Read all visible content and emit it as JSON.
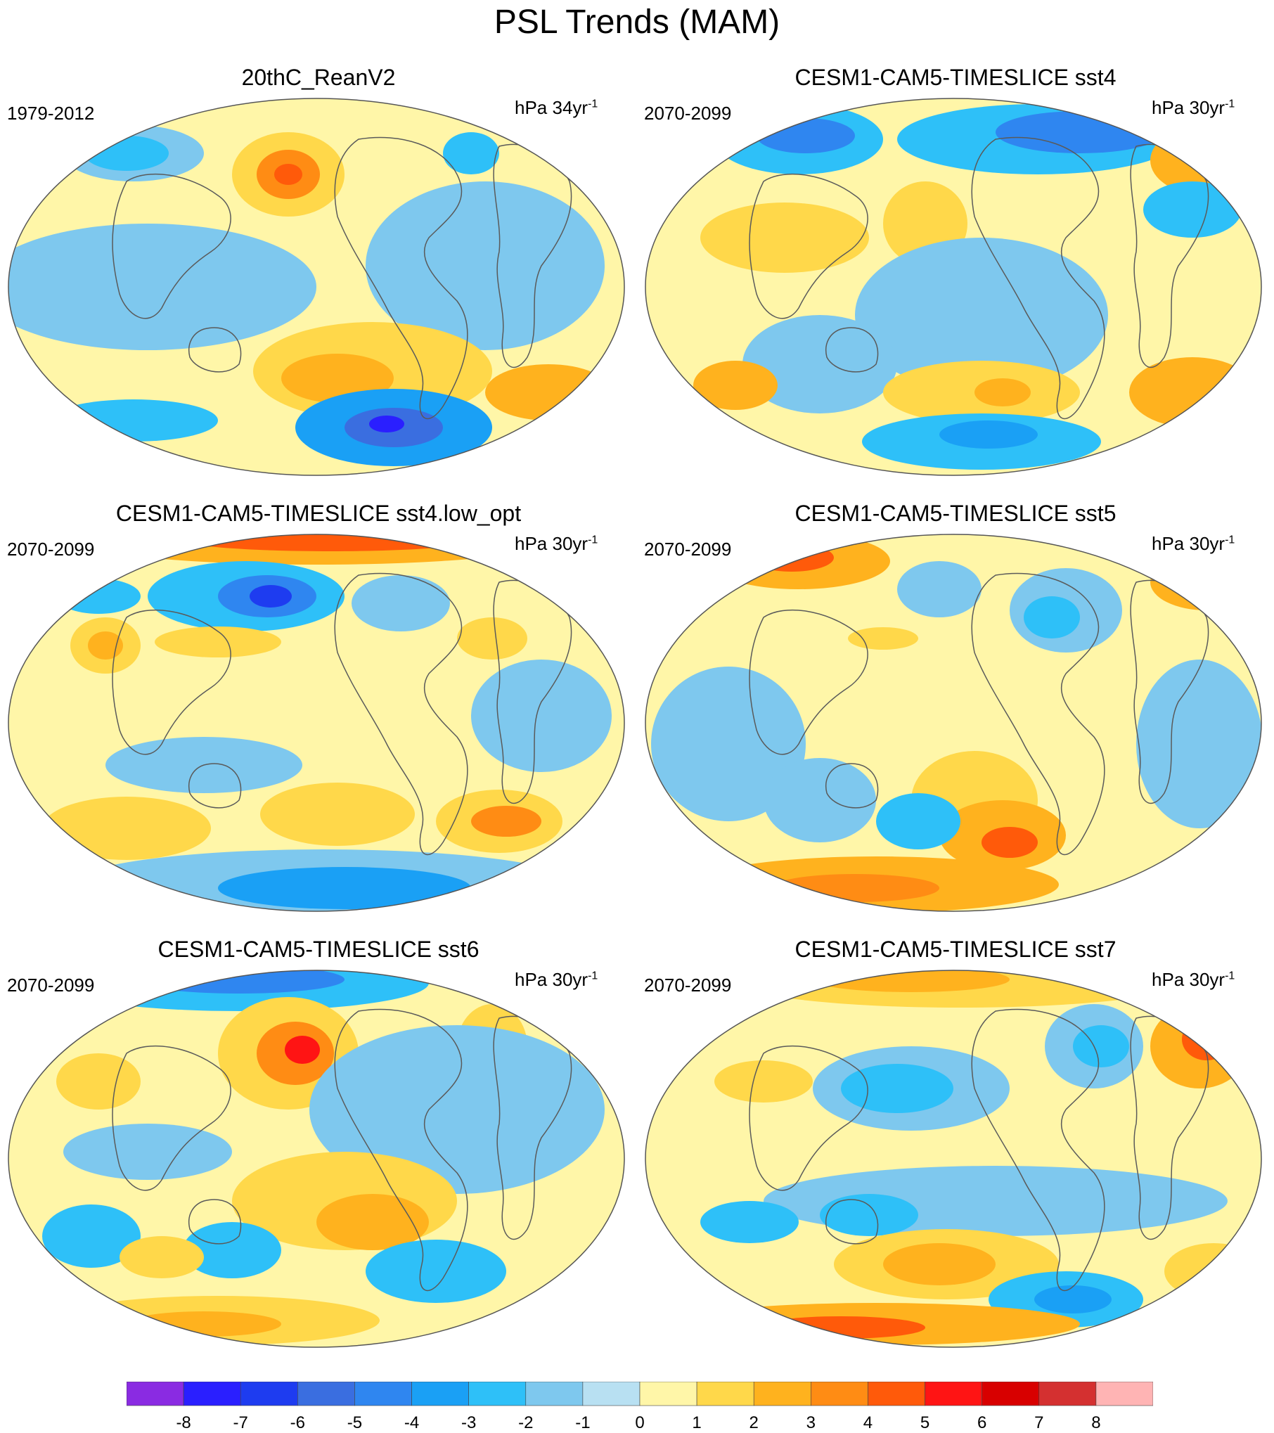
{
  "figure": {
    "title": "PSL Trends (MAM)"
  },
  "panels": [
    {
      "title": "20thC_ReanV2",
      "period": "1979-2012",
      "units_base": "hPa 34yr",
      "units_exp": "-1",
      "dominant": "mixed"
    },
    {
      "title": "CESM1-CAM5-TIMESLICE sst4",
      "period": "2070-2099",
      "units_base": "hPa 30yr",
      "units_exp": "-1",
      "dominant": "mixed"
    },
    {
      "title": "CESM1-CAM5-TIMESLICE sst4.low_opt",
      "period": "2070-2099",
      "units_base": "hPa 30yr",
      "units_exp": "-1",
      "dominant": "mixed"
    },
    {
      "title": "CESM1-CAM5-TIMESLICE sst5",
      "period": "2070-2099",
      "units_base": "hPa 30yr",
      "units_exp": "-1",
      "dominant": "mixed"
    },
    {
      "title": "CESM1-CAM5-TIMESLICE sst6",
      "period": "2070-2099",
      "units_base": "hPa 30yr",
      "units_exp": "-1",
      "dominant": "mixed"
    },
    {
      "title": "CESM1-CAM5-TIMESLICE sst7",
      "period": "2070-2099",
      "units_base": "hPa 30yr",
      "units_exp": "-1",
      "dominant": "mixed"
    }
  ],
  "colorbar": {
    "labels": [
      "-8",
      "-7",
      "-6",
      "-5",
      "-4",
      "-3",
      "-2",
      "-1",
      "0",
      "1",
      "2",
      "3",
      "4",
      "5",
      "6",
      "7",
      "8"
    ],
    "colors": [
      "#8a2be2",
      "#2a1fff",
      "#1e3cf0",
      "#3a6ee0",
      "#2f86f0",
      "#1aa0f5",
      "#2ec0f8",
      "#7ec8ee",
      "#b8e0f2",
      "#fff6a8",
      "#ffd84a",
      "#ffb21e",
      "#ff8c14",
      "#ff5a0a",
      "#ff1414",
      "#d80000",
      "#d43030",
      "#ffb4b4"
    ]
  },
  "palette": {
    "land_outline": "#5a5a5a",
    "map_border": "#555555"
  }
}
